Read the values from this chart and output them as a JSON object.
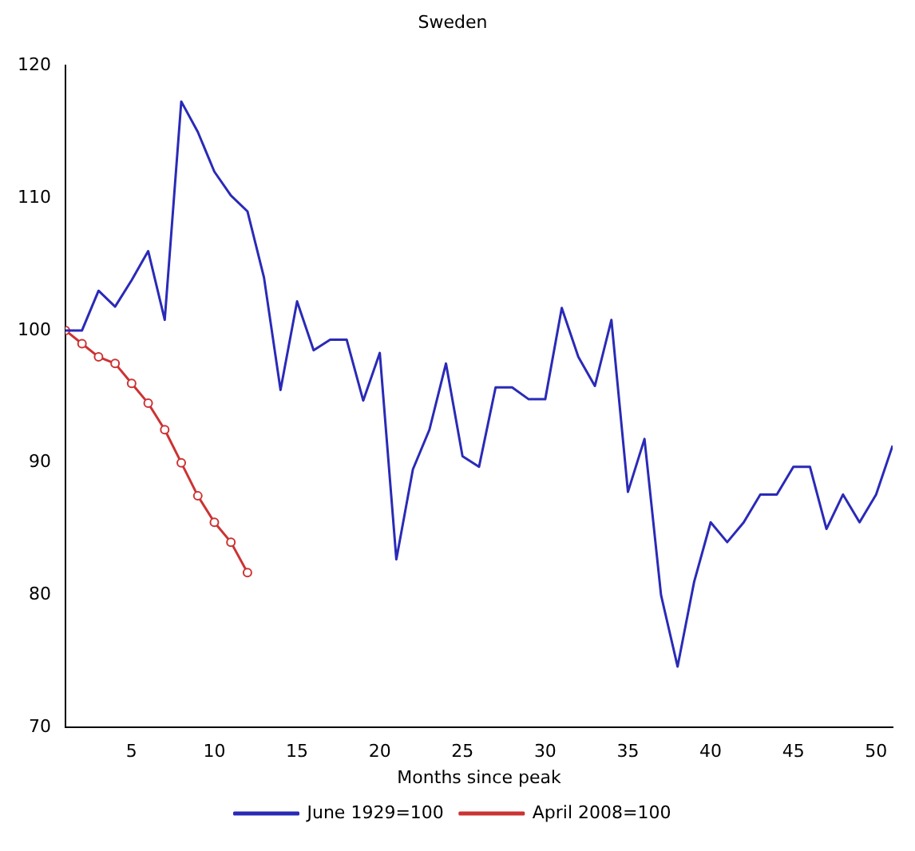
{
  "chart_data": {
    "type": "line",
    "title": "Sweden",
    "xlabel": "Months since peak",
    "xlim": [
      1,
      51
    ],
    "xticks": [
      5,
      10,
      15,
      20,
      25,
      30,
      35,
      40,
      45,
      50
    ],
    "ylim": [
      70,
      120
    ],
    "yticks": [
      70,
      80,
      90,
      100,
      110,
      120
    ],
    "grid": false,
    "legend": "bottom",
    "series": [
      {
        "name": "June 1929=100",
        "color": "#2a2ab8",
        "marker": "none",
        "x": [
          1,
          2,
          3,
          4,
          5,
          6,
          7,
          8,
          9,
          10,
          11,
          12,
          13,
          14,
          15,
          16,
          17,
          18,
          19,
          20,
          21,
          22,
          23,
          24,
          25,
          26,
          27,
          28,
          29,
          30,
          31,
          32,
          33,
          34,
          35,
          36,
          37,
          38,
          39,
          40,
          41,
          42,
          43,
          44,
          45,
          46,
          47,
          48,
          49,
          50,
          51
        ],
        "values": [
          100,
          100,
          103,
          101.8,
          103.8,
          106,
          100.8,
          117.3,
          115,
          112,
          110.2,
          109,
          104,
          95.5,
          102.2,
          98.5,
          99.3,
          99.3,
          94.7,
          98.3,
          82.7,
          89.5,
          92.5,
          97.5,
          90.5,
          89.7,
          95.7,
          95.7,
          94.8,
          94.8,
          101.7,
          98,
          95.8,
          100.8,
          87.8,
          91.8,
          80,
          74.6,
          81,
          85.5,
          84,
          85.5,
          87.6,
          87.6,
          89.7,
          89.7,
          85,
          87.6,
          85.5,
          87.6,
          91.3
        ]
      },
      {
        "name": "April 2008=100",
        "color": "#cc3333",
        "marker": "circle",
        "x": [
          1,
          2,
          3,
          4,
          5,
          6,
          7,
          8,
          9,
          10,
          11,
          12
        ],
        "values": [
          100,
          99,
          98,
          97.5,
          96,
          94.5,
          92.5,
          90,
          87.5,
          85.5,
          84,
          81.7
        ]
      }
    ]
  }
}
